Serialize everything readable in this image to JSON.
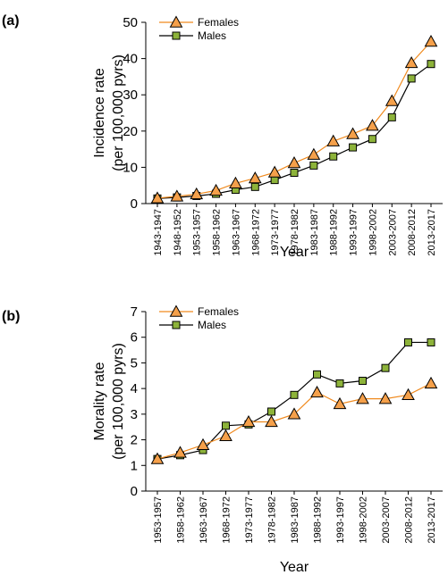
{
  "panels": [
    {
      "label": "(a)"
    },
    {
      "label": "(b)"
    }
  ],
  "colors": {
    "females": "#F08A1E",
    "females_fill": "#F5A04A",
    "males": "#000000",
    "males_fill": "#8DB33A",
    "axis": "#000000"
  },
  "chart_data": [
    {
      "type": "line",
      "categories": [
        "1943-1947",
        "1948-1952",
        "1953-1957",
        "1958-1962",
        "1963-1967",
        "1968-1972",
        "1973-1977",
        "1978-1982",
        "1983-1987",
        "1988-1992",
        "1993-1997",
        "1998-2002",
        "2003-2007",
        "2008-2012",
        "2013-2017"
      ],
      "series": [
        {
          "name": "Females",
          "values": [
            1.5,
            2.0,
            2.6,
            3.6,
            5.6,
            7.0,
            8.6,
            11.2,
            13.5,
            17.2,
            19.2,
            21.5,
            28.3,
            38.8,
            44.7
          ]
        },
        {
          "name": "Males",
          "values": [
            1.4,
            1.7,
            2.1,
            2.7,
            3.8,
            4.6,
            6.5,
            8.5,
            10.5,
            13.0,
            15.5,
            17.8,
            23.8,
            34.5,
            38.5
          ]
        }
      ],
      "yticks": [
        "0",
        "10",
        "20",
        "30",
        "40",
        "50"
      ],
      "ylim": [
        0,
        50
      ],
      "xlabel": "Year",
      "ylabel_lines": [
        "Incidence rate",
        "(per 100,000 pyrs)"
      ],
      "legend_position": "top-left",
      "grid": false
    },
    {
      "type": "line",
      "categories": [
        "1953-1957",
        "1958-1962",
        "1963-1967",
        "1968-1972",
        "1973-1977",
        "1978-1982",
        "1983-1987",
        "1988-1992",
        "1993-1997",
        "1998-2002",
        "2003-2007",
        "2008-2012",
        "2013-2017"
      ],
      "series": [
        {
          "name": "Females",
          "values": [
            1.25,
            1.5,
            1.8,
            2.15,
            2.7,
            2.7,
            3.0,
            3.85,
            3.4,
            3.6,
            3.6,
            3.75,
            4.2
          ]
        },
        {
          "name": "Males",
          "values": [
            1.25,
            1.4,
            1.6,
            2.55,
            2.6,
            3.1,
            3.75,
            4.55,
            4.2,
            4.3,
            4.8,
            5.8,
            5.8
          ]
        }
      ],
      "yticks": [
        "0",
        "1",
        "2",
        "3",
        "4",
        "5",
        "6",
        "7"
      ],
      "ylim": [
        0,
        7
      ],
      "xlabel": "Year",
      "ylabel_lines": [
        "Morality rate",
        "(per 100,000 pyrs)"
      ],
      "legend_position": "top-left",
      "grid": false
    }
  ]
}
